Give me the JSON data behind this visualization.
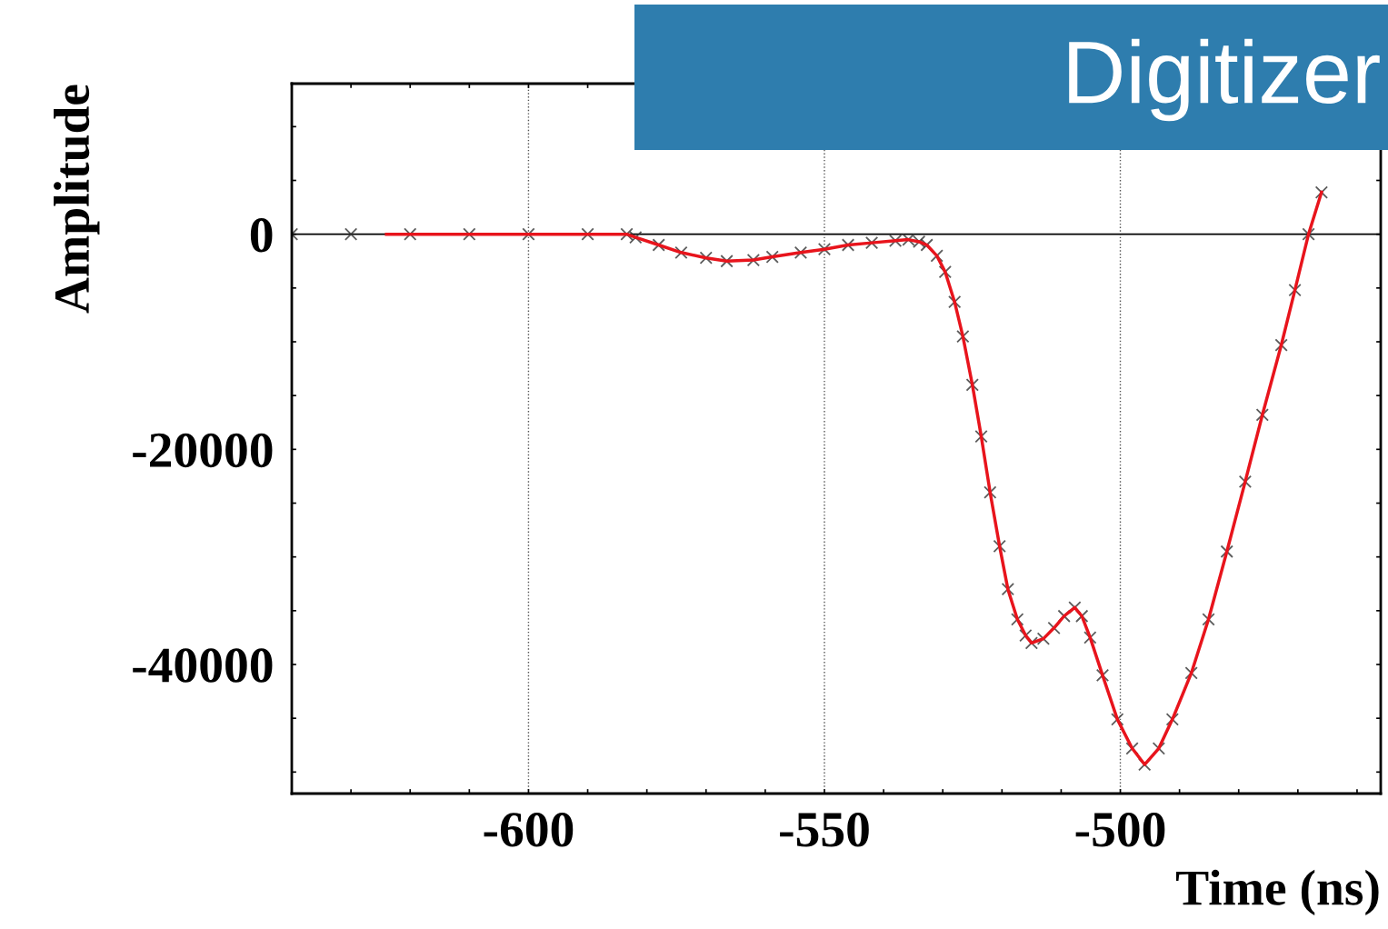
{
  "chart_data": {
    "type": "scatter",
    "title": "Digitizer",
    "xlabel": "Time (ns)",
    "ylabel": "Amplitude",
    "xlim": [
      -640,
      -456
    ],
    "ylim": [
      -52000,
      14000
    ],
    "xticks": [
      {
        "value": -630,
        "label": null
      },
      {
        "value": -620,
        "label": null
      },
      {
        "value": -610,
        "label": null
      },
      -600,
      {
        "value": -590,
        "label": null
      },
      {
        "value": -580,
        "label": null
      },
      {
        "value": -570,
        "label": null
      },
      {
        "value": -560,
        "label": null
      },
      -550,
      {
        "value": -540,
        "label": null
      },
      {
        "value": -530,
        "label": null
      },
      {
        "value": -520,
        "label": null
      },
      {
        "value": -510,
        "label": null
      },
      -500,
      {
        "value": -490,
        "label": null
      },
      {
        "value": -480,
        "label": null
      },
      {
        "value": -470,
        "label": null
      },
      {
        "value": -460,
        "label": null
      }
    ],
    "yticks": [
      {
        "value": -50000,
        "label": null
      },
      {
        "value": -45000,
        "label": null
      },
      -40000,
      {
        "value": -35000,
        "label": null
      },
      {
        "value": -30000,
        "label": null
      },
      {
        "value": -25000,
        "label": null
      },
      -20000,
      {
        "value": -15000,
        "label": null
      },
      {
        "value": -10000,
        "label": null
      },
      {
        "value": -5000,
        "label": null
      },
      0,
      {
        "value": 5000,
        "label": null
      },
      {
        "value": 10000,
        "label": null
      }
    ],
    "grid": "x",
    "marker": "cross",
    "ref_lines": [
      {
        "axis": "y",
        "value": 0,
        "color": "#000000",
        "line_style": "solid"
      }
    ],
    "series": [
      {
        "color": "#333333",
        "x": [
          -640,
          -630,
          -620,
          -610,
          -600,
          -590,
          -583.4,
          -581.9,
          -578,
          -574.2,
          -570,
          -566.5,
          -562,
          -558.8,
          -554,
          -550,
          -546,
          -542,
          -538,
          -535.8,
          -534,
          -532.7,
          -531,
          -529.6,
          -528,
          -526.6,
          -525,
          -523.5,
          -522,
          -520.4,
          -519,
          -517.4,
          -516,
          -515,
          -513,
          -511.2,
          -509.5,
          -507.7,
          -506.5,
          -505.1,
          -503,
          -500.5,
          -498,
          -495.9,
          -493.5,
          -491.2,
          -488,
          -485.1,
          -482,
          -478.9,
          -476,
          -472.8,
          -470.5,
          -468.2,
          -466
        ],
        "values": [
          0,
          0,
          0,
          0,
          0,
          0,
          0,
          -300,
          -1000,
          -1700,
          -2200,
          -2500,
          -2400,
          -2100,
          -1700,
          -1400,
          -1000,
          -800,
          -600,
          -500,
          -700,
          -1000,
          -2000,
          -3500,
          -6300,
          -9500,
          -14000,
          -18800,
          -24000,
          -29000,
          -33000,
          -35800,
          -37300,
          -38000,
          -37600,
          -36600,
          -35500,
          -34700,
          -35500,
          -37500,
          -41000,
          -45100,
          -47800,
          -49300,
          -47800,
          -45100,
          -40800,
          -35800,
          -29500,
          -23000,
          -16800,
          -10300,
          -5200,
          0,
          3900
        ]
      },
      {
        "type": "line",
        "color": "#e8141c",
        "marker": "none",
        "line_style": "solid",
        "x": [
          -624,
          -610,
          -600,
          -590,
          -583.4,
          -581.9,
          -578,
          -574.2,
          -570,
          -566.5,
          -562,
          -558.8,
          -554,
          -550,
          -546,
          -542,
          -538,
          -535.8,
          -534,
          -532.7,
          -531,
          -529.6,
          -528,
          -526.6,
          -525,
          -523.5,
          -522,
          -520.4,
          -519,
          -517.4,
          -516,
          -515,
          -513,
          -511.2,
          -509.5,
          -507.7,
          -506.5,
          -505.1,
          -503,
          -500.5,
          -498,
          -495.9,
          -493.5,
          -491.2,
          -488,
          -485.1,
          -482,
          -478.9,
          -476,
          -472.8,
          -470.5,
          -468.2,
          -466
        ],
        "values": [
          0,
          0,
          0,
          0,
          0,
          -300,
          -1000,
          -1700,
          -2200,
          -2500,
          -2400,
          -2100,
          -1700,
          -1400,
          -1000,
          -800,
          -600,
          -500,
          -700,
          -1000,
          -2000,
          -3500,
          -6300,
          -9500,
          -14000,
          -18800,
          -24000,
          -29000,
          -33000,
          -35800,
          -37300,
          -38000,
          -37600,
          -36600,
          -35500,
          -34700,
          -35500,
          -37500,
          -41000,
          -45100,
          -47800,
          -49300,
          -47800,
          -45100,
          -40800,
          -35800,
          -29500,
          -23000,
          -16800,
          -10300,
          -5200,
          0,
          3900
        ]
      }
    ]
  }
}
